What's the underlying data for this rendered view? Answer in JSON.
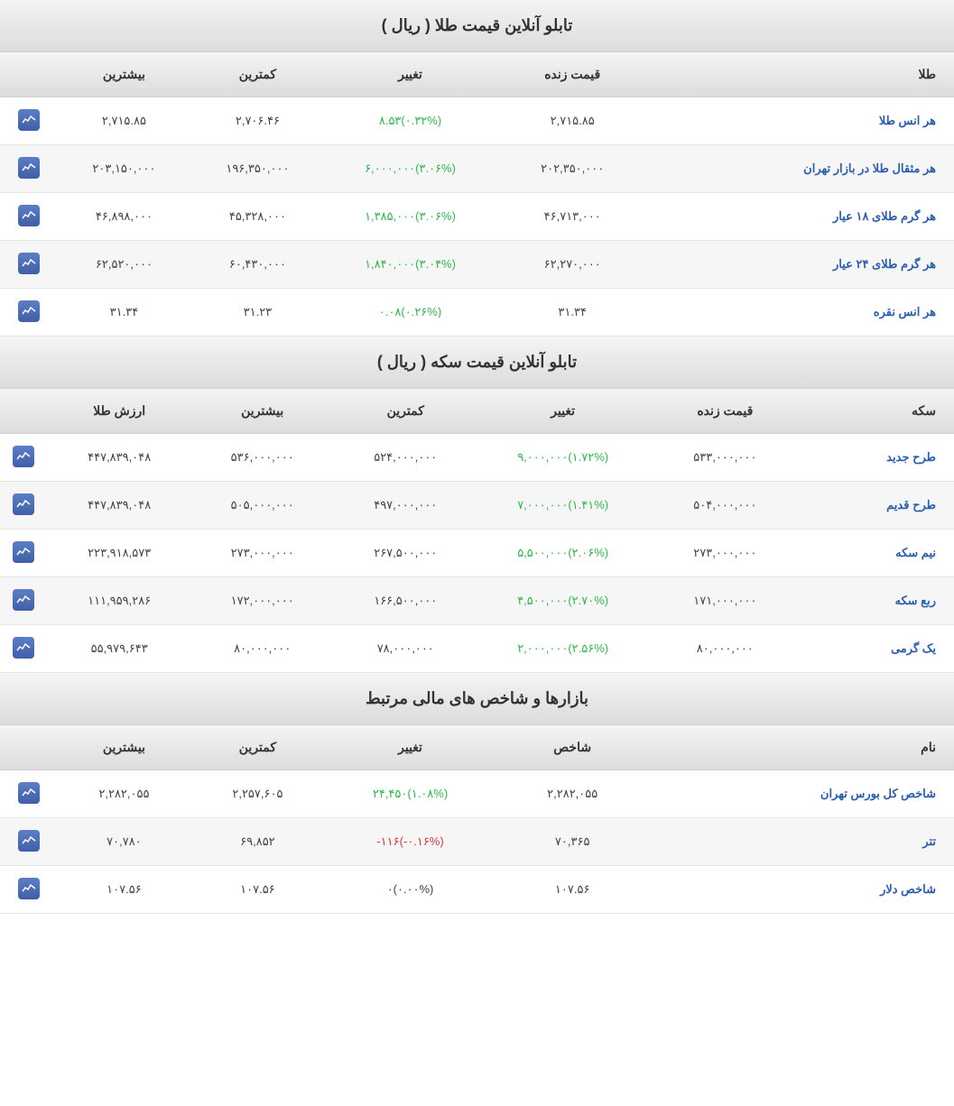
{
  "sections": {
    "gold": {
      "title": "تابلو آنلاین قیمت طلا ( ریال )",
      "headers": {
        "name": "طلا",
        "live": "قیمت زنده",
        "change": "تغییر",
        "low": "کمترین",
        "high": "بیشترین"
      },
      "rows": [
        {
          "name": "هر انس طلا",
          "live": "۲,۷۱۵.۸۵",
          "change": "۸.۵۳",
          "pct": "۰.۳۲%",
          "dir": "positive",
          "low": "۲,۷۰۶.۴۶",
          "high": "۲,۷۱۵.۸۵"
        },
        {
          "name": "هر مثقال طلا در بازار تهران",
          "live": "۲۰۲,۳۵۰,۰۰۰",
          "change": "۶,۰۰۰,۰۰۰",
          "pct": "۳.۰۶%",
          "dir": "positive",
          "low": "۱۹۶,۳۵۰,۰۰۰",
          "high": "۲۰۳,۱۵۰,۰۰۰"
        },
        {
          "name": "هر گرم طلای ۱۸ عیار",
          "live": "۴۶,۷۱۳,۰۰۰",
          "change": "۱,۳۸۵,۰۰۰",
          "pct": "۳.۰۶%",
          "dir": "positive",
          "low": "۴۵,۳۲۸,۰۰۰",
          "high": "۴۶,۸۹۸,۰۰۰"
        },
        {
          "name": "هر گرم طلای ۲۴ عیار",
          "live": "۶۲,۲۷۰,۰۰۰",
          "change": "۱,۸۴۰,۰۰۰",
          "pct": "۳.۰۴%",
          "dir": "positive",
          "low": "۶۰,۴۳۰,۰۰۰",
          "high": "۶۲,۵۲۰,۰۰۰"
        },
        {
          "name": "هر انس نقره",
          "live": "۳۱.۳۴",
          "change": "۰.۰۸",
          "pct": "۰.۲۶%",
          "dir": "positive",
          "low": "۳۱.۲۳",
          "high": "۳۱.۳۴"
        }
      ]
    },
    "coin": {
      "title": "تابلو آنلاین قیمت سکه ( ریال )",
      "headers": {
        "name": "سکه",
        "live": "قیمت زنده",
        "change": "تغییر",
        "low": "کمترین",
        "high": "بیشترین",
        "gold_value": "ارزش طلا"
      },
      "rows": [
        {
          "name": "طرح جدید",
          "live": "۵۳۳,۰۰۰,۰۰۰",
          "change": "۹,۰۰۰,۰۰۰",
          "pct": "۱.۷۲%",
          "dir": "positive",
          "low": "۵۲۴,۰۰۰,۰۰۰",
          "high": "۵۳۶,۰۰۰,۰۰۰",
          "gold_value": "۴۴۷,۸۳۹,۰۴۸"
        },
        {
          "name": "طرح قدیم",
          "live": "۵۰۴,۰۰۰,۰۰۰",
          "change": "۷,۰۰۰,۰۰۰",
          "pct": "۱.۴۱%",
          "dir": "positive",
          "low": "۴۹۷,۰۰۰,۰۰۰",
          "high": "۵۰۵,۰۰۰,۰۰۰",
          "gold_value": "۴۴۷,۸۳۹,۰۴۸"
        },
        {
          "name": "نیم سکه",
          "live": "۲۷۳,۰۰۰,۰۰۰",
          "change": "۵,۵۰۰,۰۰۰",
          "pct": "۲.۰۶%",
          "dir": "positive",
          "low": "۲۶۷,۵۰۰,۰۰۰",
          "high": "۲۷۳,۰۰۰,۰۰۰",
          "gold_value": "۲۲۳,۹۱۸,۵۷۳"
        },
        {
          "name": "ربع سکه",
          "live": "۱۷۱,۰۰۰,۰۰۰",
          "change": "۴,۵۰۰,۰۰۰",
          "pct": "۲.۷۰%",
          "dir": "positive",
          "low": "۱۶۶,۵۰۰,۰۰۰",
          "high": "۱۷۲,۰۰۰,۰۰۰",
          "gold_value": "۱۱۱,۹۵۹,۲۸۶"
        },
        {
          "name": "یک گرمی",
          "live": "۸۰,۰۰۰,۰۰۰",
          "change": "۲,۰۰۰,۰۰۰",
          "pct": "۲.۵۶%",
          "dir": "positive",
          "low": "۷۸,۰۰۰,۰۰۰",
          "high": "۸۰,۰۰۰,۰۰۰",
          "gold_value": "۵۵,۹۷۹,۶۴۳"
        }
      ]
    },
    "markets": {
      "title": "بازارها و شاخص های مالی مرتبط",
      "headers": {
        "name": "نام",
        "index": "شاخص",
        "change": "تغییر",
        "low": "کمترین",
        "high": "بیشترین"
      },
      "rows": [
        {
          "name": "شاخص کل بورس تهران",
          "index": "۲,۲۸۲,۰۵۵",
          "change": "۲۴,۴۵۰",
          "pct": "۱.۰۸%",
          "dir": "positive",
          "low": "۲,۲۵۷,۶۰۵",
          "high": "۲,۲۸۲,۰۵۵"
        },
        {
          "name": "تتر",
          "index": "۷۰,۳۶۵",
          "change": "-۱۱۶",
          "pct": "-۰.۱۶%",
          "dir": "negative",
          "low": "۶۹,۸۵۲",
          "high": "۷۰,۷۸۰"
        },
        {
          "name": "شاخص دلار",
          "index": "۱۰۷.۵۶",
          "change": "۰",
          "pct": "۰.۰۰%",
          "dir": "neutral",
          "low": "۱۰۷.۵۶",
          "high": "۱۰۷.۵۶"
        }
      ]
    }
  },
  "colors": {
    "link": "#2a5db0",
    "positive": "#2fb84c",
    "negative": "#d83a3a",
    "chart_icon_bg": "#4a6fb8",
    "header_bg_gradient_top": "#f5f5f5",
    "header_bg_gradient_bottom": "#dcdcdc",
    "row_even_bg": "#f6f6f6",
    "row_odd_bg": "#ffffff",
    "border": "#e5e5e5"
  }
}
